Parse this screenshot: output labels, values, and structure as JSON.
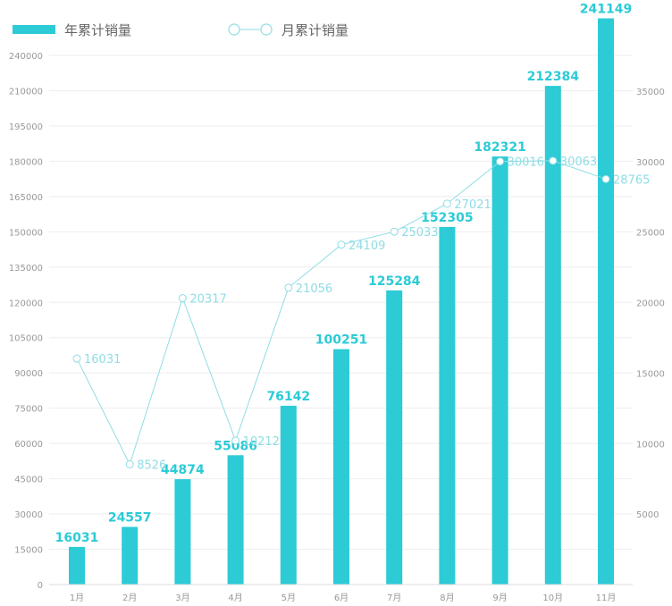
{
  "chart_data": {
    "type": "bar",
    "categories": [
      "1月",
      "2月",
      "3月",
      "4月",
      "5月",
      "6月",
      "7月",
      "8月",
      "9月",
      "10月",
      "11月"
    ],
    "series": [
      {
        "name": "年累计销量",
        "type": "bar",
        "axis": "left",
        "color": "#2ccbd6",
        "values": [
          16031,
          24557,
          44874,
          55086,
          76142,
          100251,
          125284,
          152305,
          182321,
          212384,
          241149
        ]
      },
      {
        "name": "月累计销量",
        "type": "line",
        "axis": "right",
        "color": "#8fdde4",
        "values": [
          16031,
          8526,
          20317,
          10212,
          21056,
          24109,
          25033,
          27021,
          30016,
          30063,
          28765
        ]
      }
    ],
    "y_left": {
      "range": [
        0,
        240000
      ],
      "ticks": [
        0,
        15000,
        30000,
        45000,
        60000,
        75000,
        90000,
        105000,
        120000,
        135000,
        150000,
        165000,
        180000,
        195000,
        210000,
        240000
      ]
    },
    "y_right": {
      "range": [
        0,
        35000
      ],
      "ticks": [
        5000,
        10000,
        15000,
        20000,
        25000,
        30000,
        35000
      ]
    },
    "legend_position": "top-left",
    "grid": true
  }
}
